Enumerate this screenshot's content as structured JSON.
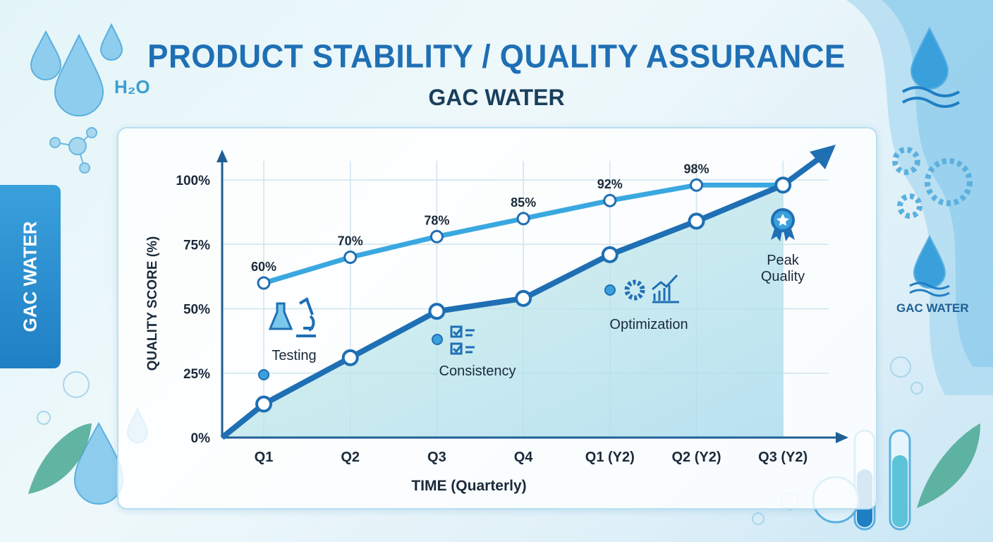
{
  "header": {
    "title": "PRODUCT STABILITY / QUALITY ASSURANCE",
    "subtitle": "GAC WATER"
  },
  "side_tab": {
    "label": "GAC WATER"
  },
  "brand_right": {
    "label": "GAC WATER"
  },
  "decor": {
    "h2o": "H₂O"
  },
  "colors": {
    "light_series": "#3aa8e0",
    "dark_series": "#1f6fb4",
    "title": "#1f6fb4",
    "grid": "#cfe4ee",
    "fill": "#bfe6ea"
  },
  "chart_data": {
    "type": "line",
    "xlabel": "TIME (Quarterly)",
    "ylabel": "QUALITY SCORE (%)",
    "categories": [
      "Q1",
      "Q2",
      "Q3",
      "Q4",
      "Q1 (Y2)",
      "Q2 (Y2)",
      "Q3 (Y2)"
    ],
    "ylim": [
      0,
      100
    ],
    "yticks": [
      "0%",
      "25%",
      "50%",
      "75%",
      "100%"
    ],
    "grid": true,
    "series": [
      {
        "values": [
          60,
          70,
          78,
          85,
          92,
          98,
          98
        ],
        "labels": [
          "60%",
          "70%",
          "78%",
          "85%",
          "92%",
          "98%",
          ""
        ],
        "color": "#3aa8e0"
      },
      {
        "values": [
          13,
          31,
          49,
          54,
          71,
          84,
          98
        ],
        "color": "#1f6fb4",
        "area_fill": true,
        "starts_at_origin": true,
        "arrow_end": true
      }
    ],
    "annotations": [
      {
        "text": "Testing",
        "icon": "flask-microscope-icon",
        "category": "Q1"
      },
      {
        "text": "Consistency",
        "icon": "checklist-icon",
        "category": "Q3"
      },
      {
        "text": "Optimization",
        "icon": "gear-chart-icon",
        "category": "Q1 (Y2)"
      },
      {
        "text": "Peak Quality",
        "icon": "award-ribbon-icon",
        "category": "Q3 (Y2)"
      }
    ]
  }
}
